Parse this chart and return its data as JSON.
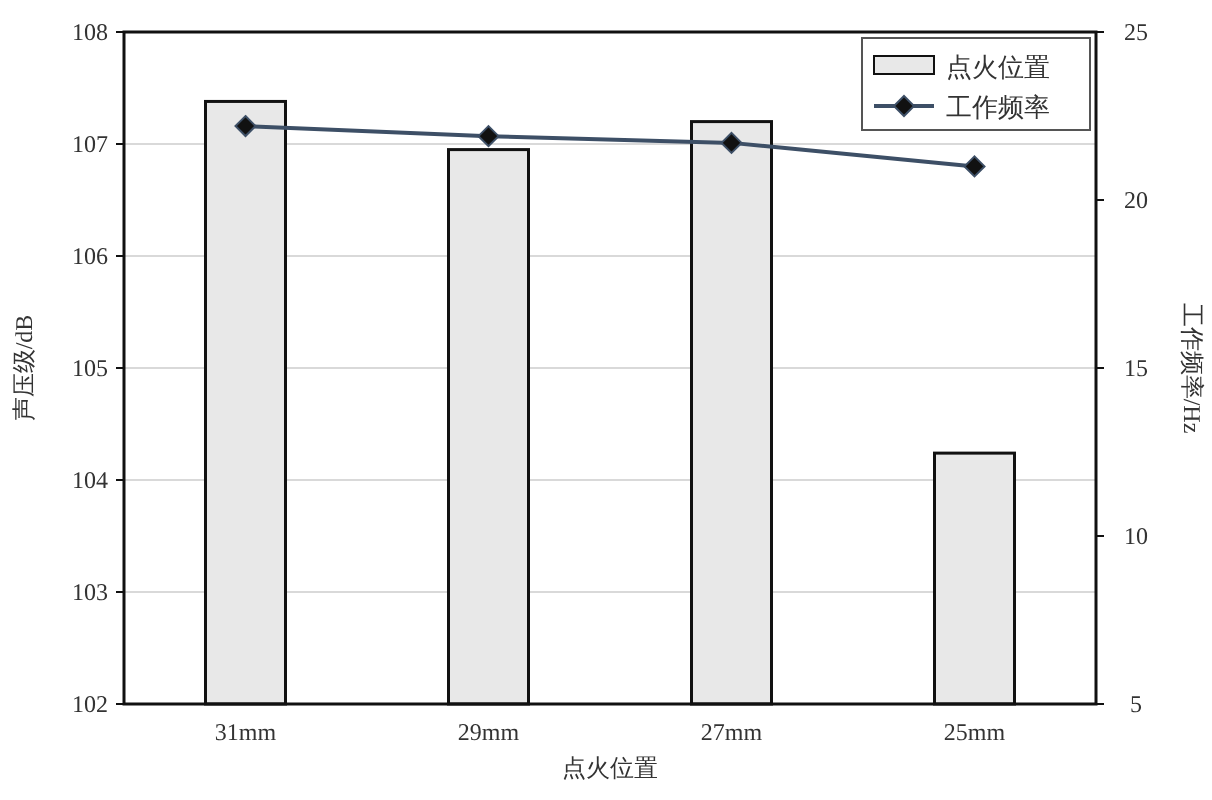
{
  "chart_data": {
    "type": "bar",
    "xlabel": "点火位置",
    "ylabel": "声压级/dB",
    "y2label": "工作频率/Hz",
    "categories": [
      "31mm",
      "29mm",
      "27mm",
      "25mm"
    ],
    "series": [
      {
        "name": "点火位置",
        "color": "#e8e8e8",
        "values": [
          107.38,
          106.95,
          107.2,
          104.24
        ]
      },
      {
        "name": "工作频率",
        "type": "line",
        "axis": "y2",
        "color": "#3d4f66",
        "marker": "diamond",
        "values": [
          22.2,
          21.9,
          21.7,
          21.0
        ]
      }
    ],
    "ylim": [
      102,
      108
    ],
    "yticks": [
      102,
      103,
      104,
      105,
      106,
      107,
      108
    ],
    "y2lim": [
      5,
      25
    ],
    "y2ticks": [
      5,
      10,
      15,
      20,
      25
    ],
    "grid": "y",
    "legend": "top right"
  }
}
